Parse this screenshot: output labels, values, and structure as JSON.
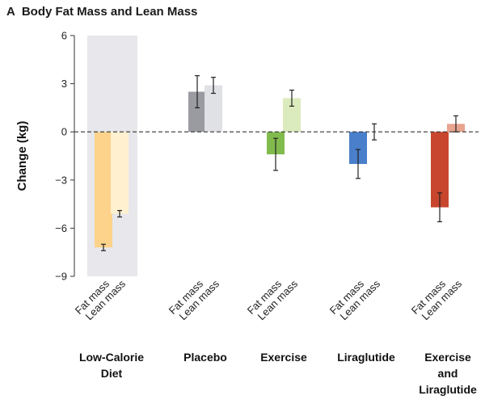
{
  "panel": {
    "letter": "A",
    "title": "Body Fat Mass and Lean Mass"
  },
  "chart_data": {
    "type": "bar",
    "title": "Body Fat Mass and Lean Mass",
    "ylabel": "Change (kg)",
    "xlabel": "",
    "ylim": [
      -9,
      6
    ],
    "yticks": [
      6,
      3,
      0,
      -3,
      -6,
      -9
    ],
    "yticklabels": [
      "6",
      "3",
      "0",
      "−3",
      "−6",
      "−9"
    ],
    "zero_line": "dashed",
    "highlighted_group": "Low-Calorie Diet",
    "bar_labels": [
      "Fat mass",
      "Lean mass"
    ],
    "groups": [
      {
        "name": "Low-Calorie Diet",
        "label_lines": [
          "Low-Calorie",
          "Diet"
        ],
        "bars": [
          {
            "series": "Fat mass",
            "value": -7.2,
            "err_low": -7.4,
            "err_high": -7.0,
            "color": "#fdd28a"
          },
          {
            "series": "Lean mass",
            "value": -5.1,
            "err_low": -5.3,
            "err_high": -4.9,
            "color": "#fff0cf"
          }
        ]
      },
      {
        "name": "Placebo",
        "label_lines": [
          "Placebo"
        ],
        "bars": [
          {
            "series": "Fat mass",
            "value": 2.5,
            "err_low": 1.5,
            "err_high": 3.5,
            "color": "#9a9ba0"
          },
          {
            "series": "Lean mass",
            "value": 2.9,
            "err_low": 2.4,
            "err_high": 3.4,
            "color": "#e0e1e5"
          }
        ]
      },
      {
        "name": "Exercise",
        "label_lines": [
          "Exercise"
        ],
        "bars": [
          {
            "series": "Fat mass",
            "value": -1.4,
            "err_low": -2.4,
            "err_high": -0.4,
            "color": "#82bb4d"
          },
          {
            "series": "Lean mass",
            "value": 2.1,
            "err_low": 1.6,
            "err_high": 2.6,
            "color": "#dcebbd"
          }
        ]
      },
      {
        "name": "Liraglutide",
        "label_lines": [
          "Liraglutide"
        ],
        "bars": [
          {
            "series": "Fat mass",
            "value": -2.0,
            "err_low": -2.9,
            "err_high": -1.1,
            "color": "#4a7fcb"
          },
          {
            "series": "Lean mass",
            "value": 0.0,
            "err_low": -0.5,
            "err_high": 0.5,
            "color": "#d6e1f2"
          }
        ]
      },
      {
        "name": "Exercise and Liraglutide",
        "label_lines": [
          "Exercise",
          "and",
          "Liraglutide"
        ],
        "bars": [
          {
            "series": "Fat mass",
            "value": -4.7,
            "err_low": -5.6,
            "err_high": -3.8,
            "color": "#c8462d"
          },
          {
            "series": "Lean mass",
            "value": 0.5,
            "err_low": 0.0,
            "err_high": 1.0,
            "color": "#e8a48f"
          }
        ]
      }
    ]
  }
}
